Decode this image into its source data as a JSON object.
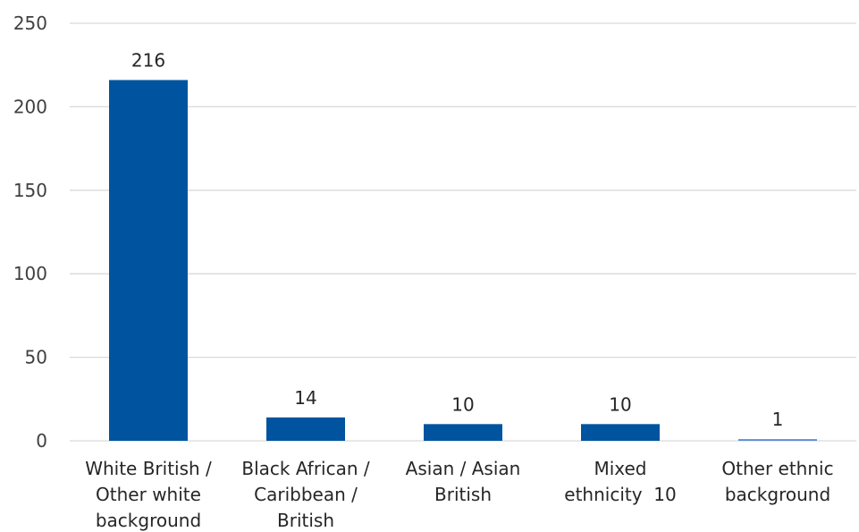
{
  "chart_data": {
    "type": "bar",
    "title": "",
    "xlabel": "",
    "ylabel": "",
    "categories": [
      [
        "White British /",
        "Other white",
        "background"
      ],
      [
        "Black African /",
        "Caribbean /",
        "British"
      ],
      [
        "Asian / Asian",
        "British"
      ],
      [
        "Mixed",
        "ethnicity  10"
      ],
      [
        "Other ethnic",
        "background"
      ]
    ],
    "values": [
      216,
      14,
      10,
      10,
      1
    ],
    "data_labels": [
      "216",
      "14",
      "10",
      "10",
      "1"
    ],
    "bar_colors": [
      "#00549F",
      "#00549F",
      "#00549F",
      "#00549F",
      "#5B8ED6"
    ],
    "ylim": [
      0,
      250
    ],
    "yticks": [
      0,
      50,
      100,
      150,
      200,
      250
    ],
    "grid": true,
    "legend": "none"
  }
}
